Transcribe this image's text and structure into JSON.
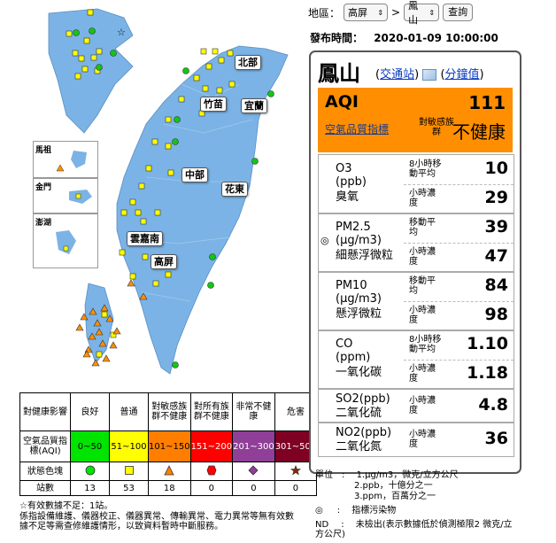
{
  "header": {
    "area_label": "地區：",
    "county_select": "高屏",
    "separator": ">",
    "station_select": "鳳山",
    "search_button": "查詢",
    "publish_label": "發布時間：",
    "publish_time": "2020-01-09 10:00:00"
  },
  "map": {
    "regions": [
      "北部",
      "竹苗",
      "宜蘭",
      "中部",
      "花東",
      "雲嘉南",
      "高屏"
    ],
    "insets": [
      "馬祖",
      "金門",
      "澎湖"
    ],
    "colors": {
      "land": "#7bb3e6",
      "good": "#10c810",
      "moderate": "#ffff00",
      "sensitive": "#ff8f00",
      "unhealthy": "#ff0000",
      "very": "#9932cc",
      "hazard": "#7e2c0b"
    }
  },
  "legend": {
    "headers": [
      "對健康影響",
      "良好",
      "普通",
      "對敏感族群不健康",
      "對所有族群不健康",
      "非常不健康",
      "危害"
    ],
    "range_label": "空氣品質指標(AQI)",
    "ranges": [
      "0~50",
      "51~100",
      "101~150",
      "151~200",
      "201~300",
      "301~500"
    ],
    "range_colors": [
      "#00e400",
      "#ffff00",
      "#ff7e00",
      "#ff0000",
      "#8f3f97",
      "#7e0023"
    ],
    "shape_label": "狀態色塊",
    "count_label": "站數",
    "counts": [
      "13",
      "53",
      "18",
      "0",
      "0",
      "0"
    ],
    "note1": "☆有效數據不足：1站。",
    "note2": "係指設備維護、儀器校正、儀器異常、傳輸異常、電力異常等無有效數據不足等需查修維護情形，以致資料暫時中斷服務。"
  },
  "panel": {
    "station": "鳳山",
    "link_traffic": "交通站",
    "link_minute": "分鐘值",
    "aqi_title": "AQI",
    "aqi_value": "111",
    "aqi_index_link": "空氣品質指標",
    "aqi_group": "對敏感族群",
    "aqi_status": "不健康",
    "pollutants": [
      {
        "name": "O3",
        "unit": "(ppb)",
        "cn": "臭氧",
        "r1": "8小時移動平均",
        "v1": "10",
        "r2": "小時濃度",
        "v2": "29"
      },
      {
        "name": "PM2.5",
        "unit": "(μg/m3)",
        "cn": "細懸浮微粒",
        "r1": "移動平均",
        "v1": "39",
        "r2": "小時濃度",
        "v2": "47"
      },
      {
        "name": "PM10",
        "unit": "(μg/m3)",
        "cn": "懸浮微粒",
        "r1": "移動平均",
        "v1": "84",
        "r2": "小時濃度",
        "v2": "98"
      },
      {
        "name": "CO",
        "unit": "(ppm)",
        "cn": "一氧化碳",
        "r1": "8小時移動平均",
        "v1": "1.10",
        "r2": "小時濃度",
        "v2": "1.18"
      },
      {
        "name": "SO2(ppb)",
        "unit": "",
        "cn": "二氧化硫",
        "r1": "小時濃度",
        "v1": "4.8",
        "r2": "",
        "v2": ""
      },
      {
        "name": "NO2(ppb)",
        "unit": "",
        "cn": "二氧化氮",
        "r1": "小時濃度",
        "v1": "36",
        "r2": "",
        "v2": ""
      }
    ],
    "indicator_mark": "◎"
  },
  "footer": {
    "unit_label": "單位",
    "unit1": "1.μg/m3，微克/立方公尺",
    "unit2": "2.ppb，十億分之一",
    "unit3": "3.ppm，百萬分之一",
    "mark": "◎",
    "mark_desc": "指標污染物",
    "nd": "ND",
    "nd_desc": "未檢出(表示數據低於偵測極限2 微克/立方公尺)"
  }
}
